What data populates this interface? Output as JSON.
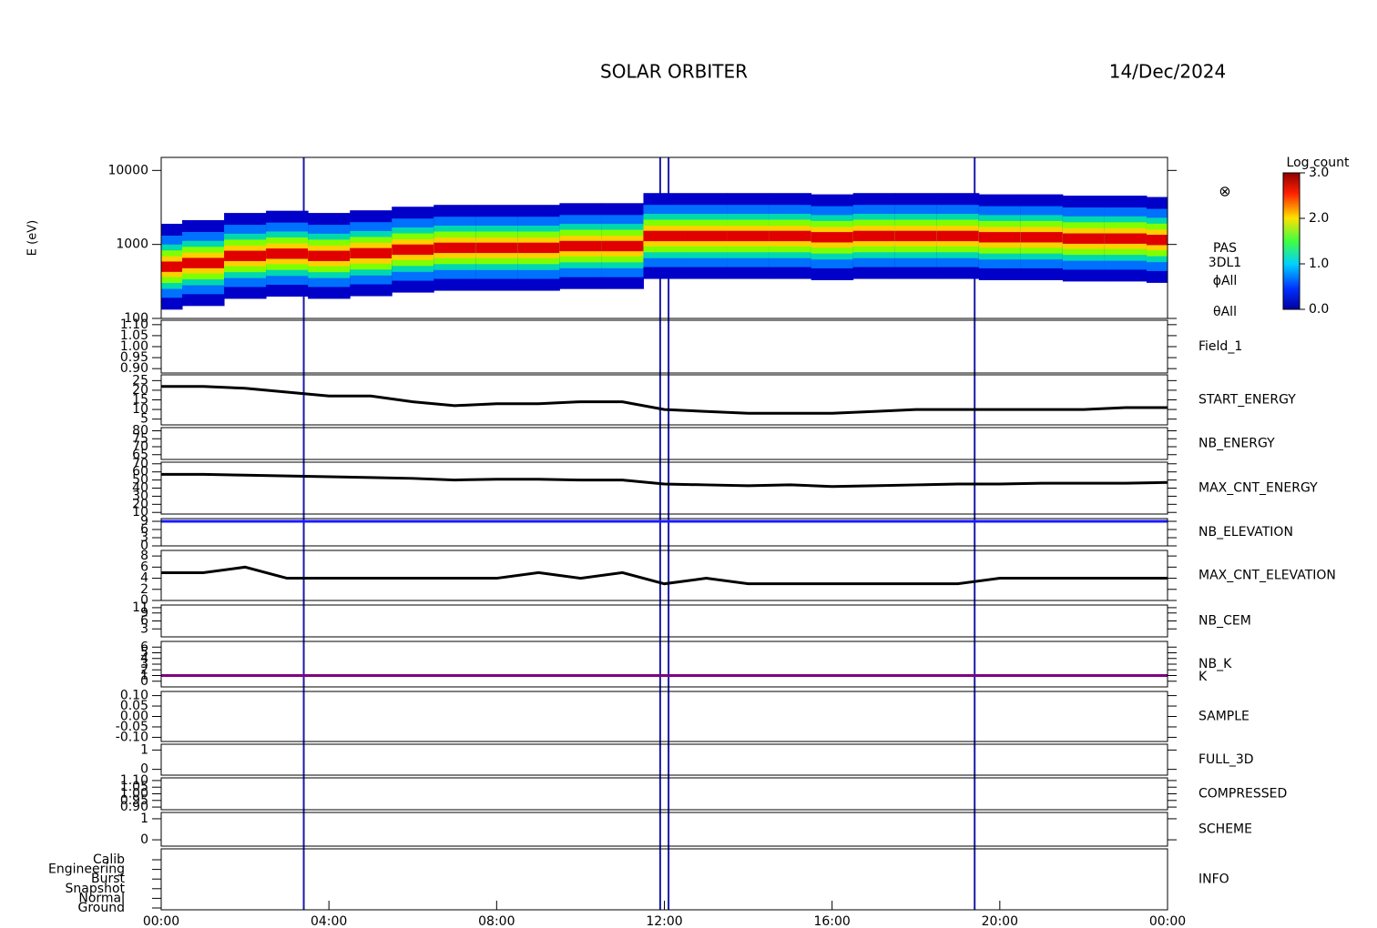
{
  "header": {
    "title": "SOLAR ORBITER",
    "date": "14/Dec/2024"
  },
  "time": {
    "x": [
      0,
      1,
      2,
      3,
      4,
      5,
      6,
      7,
      8,
      9,
      10,
      11,
      12,
      13,
      14,
      15,
      16,
      17,
      18,
      19,
      20,
      21,
      22,
      23,
      24
    ],
    "xlim": [
      0,
      24
    ],
    "xticks": [
      {
        "value": 0,
        "label": "00:00"
      },
      {
        "value": 4,
        "label": "04:00"
      },
      {
        "value": 8,
        "label": "08:00"
      },
      {
        "value": 12,
        "label": "12:00"
      },
      {
        "value": 16,
        "label": "16:00"
      },
      {
        "value": 20,
        "label": "20:00"
      },
      {
        "value": 24,
        "label": "00:00"
      }
    ],
    "markers": [
      3.4,
      11.9,
      12.1,
      19.4
    ]
  },
  "chart_data": [
    {
      "type": "heatmap",
      "ylabel": "E (eV)",
      "log": true,
      "ylim": [
        100,
        15000
      ],
      "yticks": [
        100,
        1000,
        10000
      ],
      "side_labels": [
        "PAS",
        "3DL1",
        "ϕAll",
        "θAll"
      ],
      "values": [
        500,
        560,
        700,
        750,
        700,
        760,
        850,
        900,
        900,
        900,
        950,
        950,
        1300,
        1300,
        1300,
        1300,
        1250,
        1300,
        1300,
        1300,
        1250,
        1250,
        1200,
        1200,
        1150
      ],
      "colorbar": {
        "label": "Log count",
        "zlim": [
          0,
          3
        ],
        "ticks": [
          {
            "value": 0,
            "label": "0.0"
          },
          {
            "value": 1,
            "label": "1.0"
          },
          {
            "value": 2,
            "label": "2.0"
          },
          {
            "value": 3,
            "label": "3.0"
          }
        ]
      }
    },
    {
      "type": "line",
      "label": "Field_1",
      "label_color": "#1a1aa8",
      "ylim": [
        0.88,
        1.12
      ],
      "yticks": [
        {
          "value": 0.9,
          "label": "0.90"
        },
        {
          "value": 0.95,
          "label": "0.95"
        },
        {
          "value": 1,
          "label": "1.00"
        },
        {
          "value": 1.05,
          "label": "1.05"
        },
        {
          "value": 1.1,
          "label": "1.10"
        }
      ],
      "series": []
    },
    {
      "type": "line",
      "label": "START_ENERGY",
      "label_color": "#000000",
      "ylim": [
        2,
        28
      ],
      "yticks": [
        5,
        10,
        15,
        20,
        25
      ],
      "series": [
        {
          "color": "#000000",
          "values": [
            22,
            22,
            21,
            19,
            17,
            17,
            14,
            12,
            13,
            13,
            14,
            14,
            10,
            9,
            8,
            8,
            8,
            9,
            10,
            10,
            10,
            10,
            10,
            11,
            11
          ]
        }
      ]
    },
    {
      "type": "line",
      "label": "NB_ENERGY",
      "label_color": "#1a1aa8",
      "ylim": [
        62,
        82
      ],
      "yticks": [
        65,
        70,
        75,
        80
      ],
      "series": []
    },
    {
      "type": "line",
      "label": "MAX_CNT_ENERGY",
      "label_color": "#000000",
      "ylim": [
        8,
        72
      ],
      "yticks": [
        10,
        20,
        30,
        40,
        50,
        60,
        70
      ],
      "series": [
        {
          "color": "#000000",
          "values": [
            57,
            57,
            56,
            55,
            54,
            53,
            52,
            50,
            51,
            51,
            50,
            50,
            45,
            44,
            43,
            44,
            42,
            43,
            44,
            45,
            45,
            46,
            46,
            46,
            47
          ]
        }
      ]
    },
    {
      "type": "line",
      "label": "NB_ELEVATION",
      "label_color": "#1a1aa8",
      "ylim": [
        0,
        10
      ],
      "yticks": [
        0,
        3,
        6,
        9
      ],
      "series": [
        {
          "color": "#1a1aff",
          "values": [
            9,
            9,
            9,
            9,
            9,
            9,
            9,
            9,
            9,
            9,
            9,
            9,
            9,
            9,
            9,
            9,
            9,
            9,
            9,
            9,
            9,
            9,
            9,
            9,
            9
          ]
        }
      ]
    },
    {
      "type": "line",
      "label": "MAX_CNT_ELEVATION",
      "label_color": "#000000",
      "ylim": [
        0,
        9
      ],
      "yticks": [
        0,
        2,
        4,
        6,
        8
      ],
      "series": [
        {
          "color": "#000000",
          "values": [
            5,
            5,
            6,
            4,
            4,
            4,
            4,
            4,
            4,
            5,
            4,
            5,
            3,
            4,
            3,
            3,
            3,
            3,
            3,
            3,
            4,
            4,
            4,
            4,
            4
          ]
        }
      ]
    },
    {
      "type": "line",
      "label": "NB_CEM",
      "label_color": "#1a1aa8",
      "ylim": [
        0,
        12
      ],
      "yticks": [
        3,
        6,
        9,
        11
      ],
      "series": []
    },
    {
      "type": "line",
      "label": "NB_K",
      "label_color": "#c02020",
      "ylim": [
        -1,
        7
      ],
      "yticks": [
        0,
        1,
        2,
        3,
        4,
        5,
        6
      ],
      "series": [
        {
          "name": "K",
          "color": "#800080",
          "values": [
            1,
            1,
            1,
            1,
            1,
            1,
            1,
            1,
            1,
            1,
            1,
            1,
            1,
            1,
            1,
            1,
            1,
            1,
            1,
            1,
            1,
            1,
            1,
            1,
            1
          ]
        }
      ]
    },
    {
      "type": "line",
      "label": "SAMPLE",
      "label_color": "#1a1aa8",
      "ylim": [
        -0.12,
        0.12
      ],
      "yticks": [
        {
          "value": -0.1,
          "label": "-0.10"
        },
        {
          "value": -0.05,
          "label": "-0.05"
        },
        {
          "value": 0,
          "label": "0.00"
        },
        {
          "value": 0.05,
          "label": "0.05"
        },
        {
          "value": 0.1,
          "label": "0.10"
        }
      ],
      "series": []
    },
    {
      "type": "line",
      "label": "FULL_3D",
      "label_color": "#1a1aa8",
      "ylim": [
        -0.3,
        1.3
      ],
      "yticks": [
        0,
        1
      ],
      "series": []
    },
    {
      "type": "line",
      "label": "COMPRESSED",
      "label_color": "#000000",
      "ylim": [
        0.88,
        1.12
      ],
      "yticks": [
        {
          "value": 0.9,
          "label": "0.90"
        },
        {
          "value": 0.95,
          "label": "0.95"
        },
        {
          "value": 1,
          "label": "1.00"
        },
        {
          "value": 1.05,
          "label": "1.05"
        },
        {
          "value": 1.1,
          "label": "1.10"
        }
      ],
      "series": []
    },
    {
      "type": "line",
      "label": "SCHEME",
      "label_color": "#000000",
      "ylim": [
        -0.3,
        1.3
      ],
      "yticks": [
        0,
        1
      ],
      "series": []
    },
    {
      "type": "category",
      "label": "INFO",
      "label_color": "#000000",
      "categories": [
        "Calib",
        "Engineering",
        "Burst",
        "Snapshot",
        "Normal",
        "Ground"
      ]
    }
  ]
}
